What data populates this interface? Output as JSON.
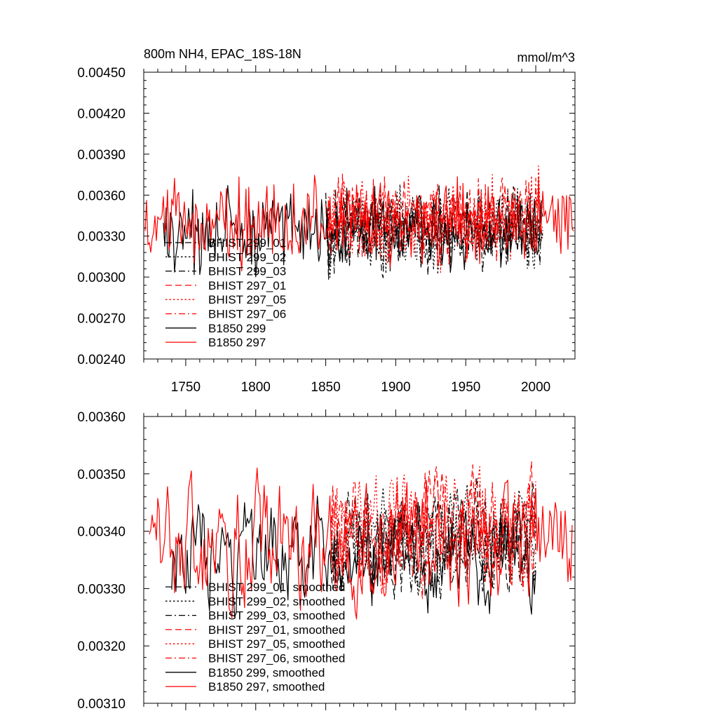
{
  "colors": {
    "black": "#000000",
    "red": "#ff0000"
  },
  "chart_data": [
    {
      "type": "line",
      "title": "800m NH4, EPAC_18S-18N",
      "units": "mmol/m^3",
      "xlim": [
        1720,
        2028
      ],
      "ylim": [
        0.0024,
        0.0045
      ],
      "xticks": [
        1750,
        1800,
        1850,
        1900,
        1950,
        2000
      ],
      "xtick_labels": [
        "1750",
        "1800",
        "1850",
        "1900",
        "1950",
        "2000"
      ],
      "yticks": [
        0.0024,
        0.0027,
        0.003,
        0.0033,
        0.0036,
        0.0039,
        0.0042,
        0.0045
      ],
      "ytick_labels": [
        "0.00240",
        "0.00270",
        "0.00300",
        "0.00330",
        "0.00360",
        "0.00390",
        "0.00420",
        "0.00450"
      ],
      "legend_position": "bottom-left",
      "series": [
        {
          "name": "BHIST 299_01",
          "color": "black",
          "dash": "dash",
          "x_start": 1850,
          "x_end": 2005,
          "mean": 0.00335,
          "amp": 0.00037,
          "seed": 11,
          "smooth": false
        },
        {
          "name": "BHIST 299_02",
          "color": "black",
          "dash": "dot",
          "x_start": 1850,
          "x_end": 2005,
          "mean": 0.00333,
          "amp": 0.00037,
          "seed": 12,
          "smooth": false
        },
        {
          "name": "BHIST 299_03",
          "color": "black",
          "dash": "dashdot",
          "x_start": 1850,
          "x_end": 2005,
          "mean": 0.00335,
          "amp": 0.00036,
          "seed": 13,
          "smooth": false
        },
        {
          "name": "BHIST 297_01",
          "color": "red",
          "dash": "dash",
          "x_start": 1850,
          "x_end": 2005,
          "mean": 0.00345,
          "amp": 0.00036,
          "seed": 21,
          "smooth": false
        },
        {
          "name": "BHIST 297_05",
          "color": "red",
          "dash": "dot",
          "x_start": 1850,
          "x_end": 2005,
          "mean": 0.00343,
          "amp": 0.00036,
          "seed": 22,
          "smooth": false
        },
        {
          "name": "BHIST 297_06",
          "color": "red",
          "dash": "dashdot",
          "x_start": 1850,
          "x_end": 2005,
          "mean": 0.00342,
          "amp": 0.00036,
          "seed": 23,
          "smooth": false
        },
        {
          "name": "B1850 299",
          "color": "black",
          "dash": "solid",
          "x_start": 1734,
          "x_end": 2004,
          "mean": 0.00333,
          "amp": 0.00034,
          "seed": 31,
          "smooth": false
        },
        {
          "name": "B1850 297",
          "color": "red",
          "dash": "solid",
          "x_start": 1721,
          "x_end": 2027,
          "mean": 0.0034,
          "amp": 0.00036,
          "seed": 41,
          "smooth": false
        }
      ]
    },
    {
      "type": "line",
      "title": "",
      "units": "",
      "xlim": [
        1720,
        2028
      ],
      "ylim": [
        0.0031,
        0.0036
      ],
      "xticks": [
        1750,
        1800,
        1850,
        1900,
        1950,
        2000
      ],
      "xtick_labels": [
        "",
        "",
        "",
        "",
        "",
        ""
      ],
      "yticks": [
        0.0031,
        0.0032,
        0.0033,
        0.0034,
        0.0035,
        0.0036
      ],
      "ytick_labels": [
        "0.00310",
        "0.00320",
        "0.00330",
        "0.00340",
        "0.00350",
        "0.00360"
      ],
      "legend_position": "bottom-left",
      "series": [
        {
          "name": "BHIST 299_01, smoothed",
          "color": "black",
          "dash": "dash",
          "x_start": 1854,
          "x_end": 2000,
          "mean": 0.00338,
          "amp": 8e-05,
          "seed": 51,
          "smooth": true
        },
        {
          "name": "BHIST 299_02, smoothed",
          "color": "black",
          "dash": "dot",
          "x_start": 1854,
          "x_end": 2000,
          "mean": 0.00338,
          "amp": 8e-05,
          "seed": 52,
          "smooth": true
        },
        {
          "name": "BHIST 299_03, smoothed",
          "color": "black",
          "dash": "dashdot",
          "x_start": 1854,
          "x_end": 2000,
          "mean": 0.00337,
          "amp": 8e-05,
          "seed": 53,
          "smooth": true
        },
        {
          "name": "BHIST 297_01, smoothed",
          "color": "red",
          "dash": "dash",
          "x_start": 1854,
          "x_end": 2000,
          "mean": 0.00341,
          "amp": 9e-05,
          "seed": 61,
          "smooth": true
        },
        {
          "name": "BHIST 297_05, smoothed",
          "color": "red",
          "dash": "dot",
          "x_start": 1854,
          "x_end": 2000,
          "mean": 0.00341,
          "amp": 9e-05,
          "seed": 62,
          "smooth": true
        },
        {
          "name": "BHIST 297_06, smoothed",
          "color": "red",
          "dash": "dashdot",
          "x_start": 1854,
          "x_end": 2000,
          "mean": 0.00339,
          "amp": 9e-05,
          "seed": 63,
          "smooth": true
        },
        {
          "name": "B1850 299, smoothed",
          "color": "black",
          "dash": "solid",
          "x_start": 1740,
          "x_end": 2000,
          "mean": 0.00336,
          "amp": 9e-05,
          "seed": 71,
          "smooth": true
        },
        {
          "name": "B1850 297, smoothed",
          "color": "red",
          "dash": "solid",
          "x_start": 1724,
          "x_end": 2026,
          "mean": 0.00338,
          "amp": 0.0001,
          "seed": 81,
          "smooth": true
        }
      ]
    }
  ]
}
